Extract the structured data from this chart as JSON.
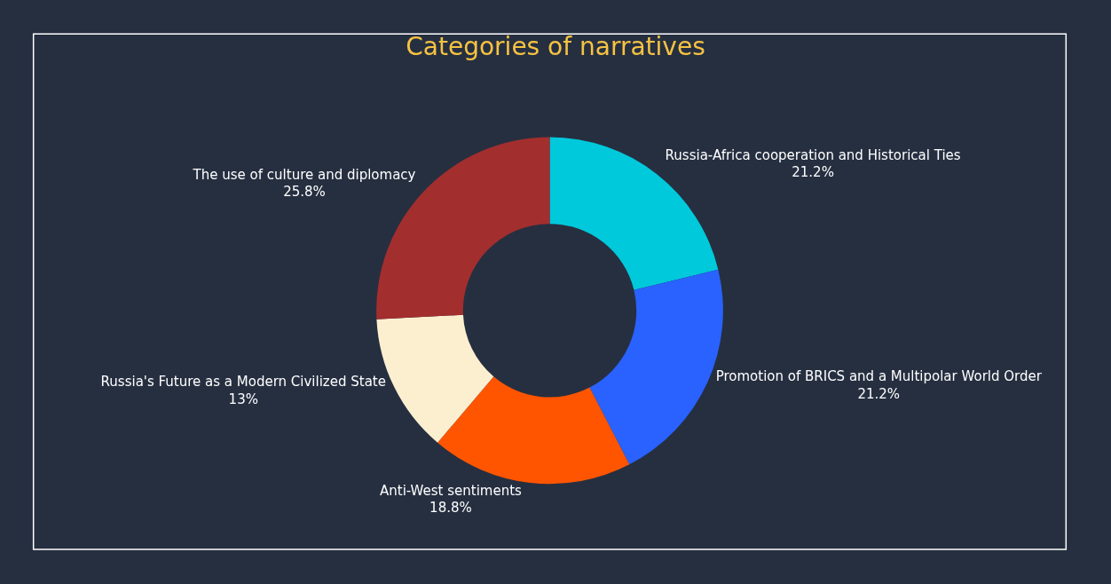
{
  "chart_data": {
    "type": "donut",
    "title": "Categories of narratives",
    "categories": [
      "Russia-Africa cooperation and Historical Ties",
      "Promotion of BRICS and a Multipolar World Order",
      "Anti-West sentiments",
      "Russia's Future as a Modern Civilized State",
      "The use of culture and diplomacy"
    ],
    "values": [
      21.2,
      21.2,
      18.8,
      13,
      25.8
    ],
    "value_labels": [
      "21.2%",
      "21.2%",
      "18.8%",
      "13%",
      "25.8%"
    ],
    "colors": [
      "#00c9db",
      "#2962ff",
      "#ff5500",
      "#fcefcf",
      "#a32e2e"
    ],
    "legend": false
  }
}
